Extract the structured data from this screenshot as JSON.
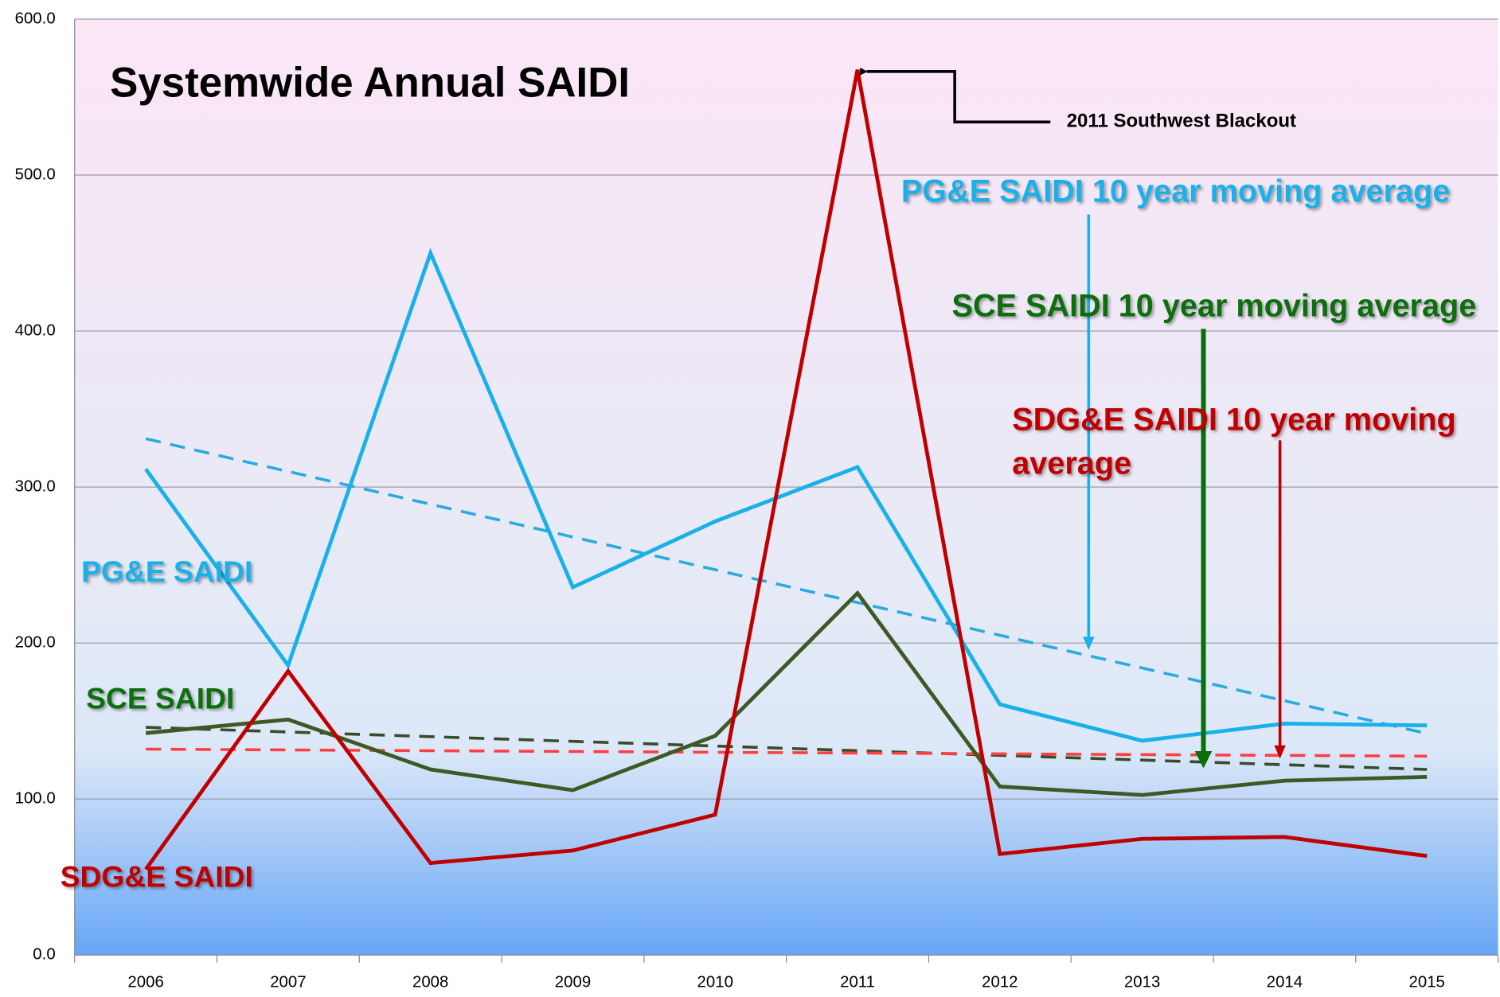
{
  "chart_data": {
    "type": "line",
    "title": "Systemwide Annual SAIDI",
    "annotation": "2011 Southwest Blackout",
    "categories": [
      "2006",
      "2007",
      "2008",
      "2009",
      "2010",
      "2011",
      "2012",
      "2013",
      "2014",
      "2015"
    ],
    "ylim": [
      0,
      600
    ],
    "yticks": [
      {
        "value": 0,
        "label": "0.0"
      },
      {
        "value": 100,
        "label": "100.0"
      },
      {
        "value": 200,
        "label": "200.0"
      },
      {
        "value": 300,
        "label": "300.0"
      },
      {
        "value": 400,
        "label": "400.0"
      },
      {
        "value": 500,
        "label": "500.0"
      },
      {
        "value": 600,
        "label": "600.0"
      }
    ],
    "grid": true,
    "series": [
      {
        "name": "PG&E SAIDI",
        "color": "#1ab0e8",
        "values": [
          311.5,
          185.7,
          450,
          235.8,
          278,
          312.8,
          160.7,
          137.4,
          148.4,
          147.2
        ]
      },
      {
        "name": "SCE SAIDI",
        "color": "#3e5a24",
        "values": [
          142.3,
          151,
          119,
          105.7,
          140.5,
          232,
          108,
          102.6,
          111.8,
          114.2
        ]
      },
      {
        "name": "SDG&E SAIDI",
        "color": "#c00000",
        "values": [
          55,
          182,
          59,
          67,
          90,
          567.5,
          64.8,
          74.5,
          75.7,
          63.5
        ]
      },
      {
        "name": "PG&E SAIDI 10 year moving average",
        "color": "#2aaae0",
        "dashed": true,
        "values": [
          331,
          310,
          289,
          268,
          247,
          226,
          205,
          184,
          163,
          142
        ]
      },
      {
        "name": "SCE SAIDI 10 year moving average",
        "color": "#3a4a2a",
        "dashed": true,
        "values": [
          146,
          143,
          140,
          137,
          134,
          131,
          128,
          125,
          122,
          119
        ]
      },
      {
        "name": "SDG&E SAIDI 10 year moving average",
        "color": "#ff4040",
        "dashed": true,
        "values": [
          132,
          131.5,
          131,
          130.5,
          130,
          129.5,
          129,
          128.5,
          128,
          127.5
        ]
      }
    ]
  }
}
